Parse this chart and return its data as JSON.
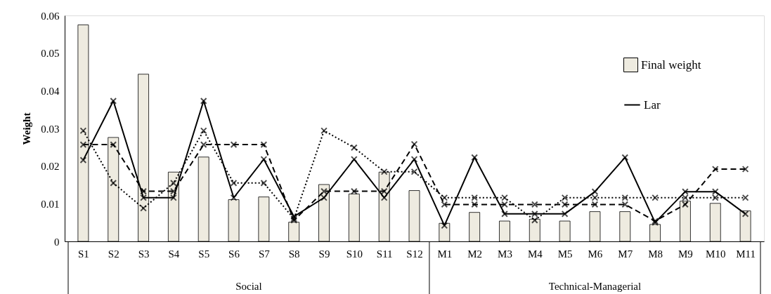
{
  "chart_data": {
    "type": "bar",
    "ylabel": "Weight",
    "categories": [
      "S1",
      "S2",
      "S3",
      "S4",
      "S5",
      "S6",
      "S7",
      "S8",
      "S9",
      "S10",
      "S11",
      "S12",
      "M1",
      "M2",
      "M3",
      "M4",
      "M5",
      "M6",
      "M7",
      "M8",
      "M9",
      "M10",
      "M11"
    ],
    "series": [
      {
        "name": "Final weight",
        "color": "#eeebe0",
        "values": [
          0.0575,
          0.0276,
          0.0444,
          0.0184,
          0.0224,
          0.0111,
          0.0118,
          0.0051,
          0.0151,
          0.0126,
          0.0184,
          0.0135,
          0.0048,
          0.0077,
          0.0054,
          0.0059,
          0.0054,
          0.0079,
          0.0079,
          0.0045,
          0.0107,
          0.0101,
          0.0081
        ]
      },
      {
        "name": "Lar",
        "type": "line",
        "color": "#000000",
        "line_style": "solid",
        "marker": "cross",
        "values": [
          0.0216,
          0.0373,
          0.0116,
          0.0116,
          0.0373,
          0.0116,
          0.0218,
          0.0066,
          0.0116,
          0.0218,
          0.0116,
          0.0218,
          0.0042,
          0.0223,
          0.0073,
          0.0073,
          0.0073,
          0.0132,
          0.0223,
          0.005,
          0.0132,
          0.0132,
          0.0073
        ]
      },
      {
        "type": "line",
        "color": "#000000",
        "line_style": "dashed",
        "marker": "cross",
        "values": [
          0.0257,
          0.0257,
          0.0133,
          0.0133,
          0.0257,
          0.0257,
          0.0257,
          0.0056,
          0.0133,
          0.0133,
          0.0133,
          0.0258,
          0.0098,
          0.0098,
          0.0098,
          0.0098,
          0.0098,
          0.0098,
          0.0098,
          0.0054,
          0.0098,
          0.0192,
          0.0192
        ]
      },
      {
        "type": "line",
        "color": "#000000",
        "line_style": "dotted",
        "marker": "cross",
        "values": [
          0.0294,
          0.0155,
          0.0088,
          0.0155,
          0.0294,
          0.0155,
          0.0155,
          0.006,
          0.0294,
          0.0249,
          0.0185,
          0.0185,
          0.0116,
          0.0116,
          0.0116,
          0.0056,
          0.0116,
          0.0116,
          0.0116,
          0.0116,
          0.0116,
          0.0116,
          0.0116
        ]
      }
    ],
    "ylim": [
      0,
      0.06
    ],
    "yticks": [
      0,
      0.01,
      0.02,
      0.03,
      0.04,
      0.05,
      0.06
    ],
    "grid": false,
    "legend": "top right",
    "annotations": [
      "Social",
      "Technical-Managerial"
    ]
  }
}
